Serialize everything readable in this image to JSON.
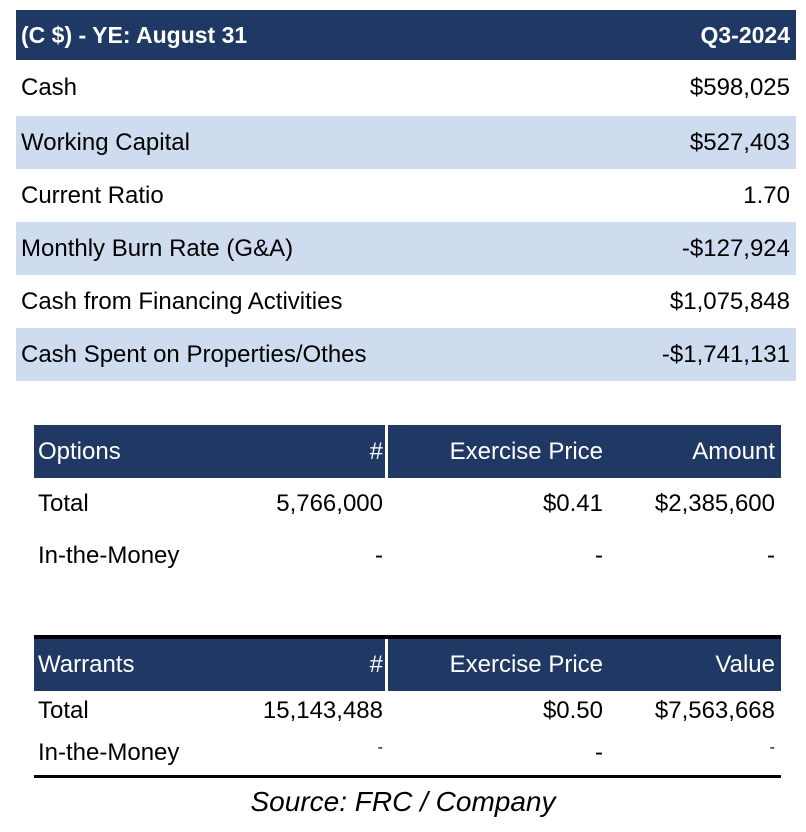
{
  "summary": {
    "header": {
      "label": "(C $) - YE: August 31",
      "period": "Q3-2024"
    },
    "rows": [
      {
        "label": "Cash",
        "value": "$598,025"
      },
      {
        "label": "Working Capital",
        "value": "$527,403"
      },
      {
        "label": "Current Ratio",
        "value": "1.70"
      },
      {
        "label": "Monthly Burn Rate (G&A)",
        "value": "-$127,924"
      },
      {
        "label": "Cash from Financing Activities",
        "value": "$1,075,848"
      },
      {
        "label": "Cash Spent on Properties/Othes",
        "value": "-$1,741,131"
      }
    ]
  },
  "options": {
    "header": {
      "label": "Options",
      "count": "#",
      "price": "Exercise Price",
      "amount": "Amount"
    },
    "rows": [
      {
        "label": "Total",
        "count": "5,766,000",
        "price": "$0.41",
        "amount": "$2,385,600"
      },
      {
        "label": "In-the-Money",
        "count": "-",
        "price": "-",
        "amount": "-"
      }
    ]
  },
  "warrants": {
    "header": {
      "label": "Warrants",
      "count": "#",
      "price": "Exercise Price",
      "amount": "Value"
    },
    "rows": [
      {
        "label": "Total",
        "count": "15,143,488",
        "price": "$0.50",
        "amount": "$7,563,668"
      },
      {
        "label": "In-the-Money",
        "count": "-",
        "price": "-",
        "amount": "-"
      }
    ]
  },
  "source": "Source: FRC / Company"
}
